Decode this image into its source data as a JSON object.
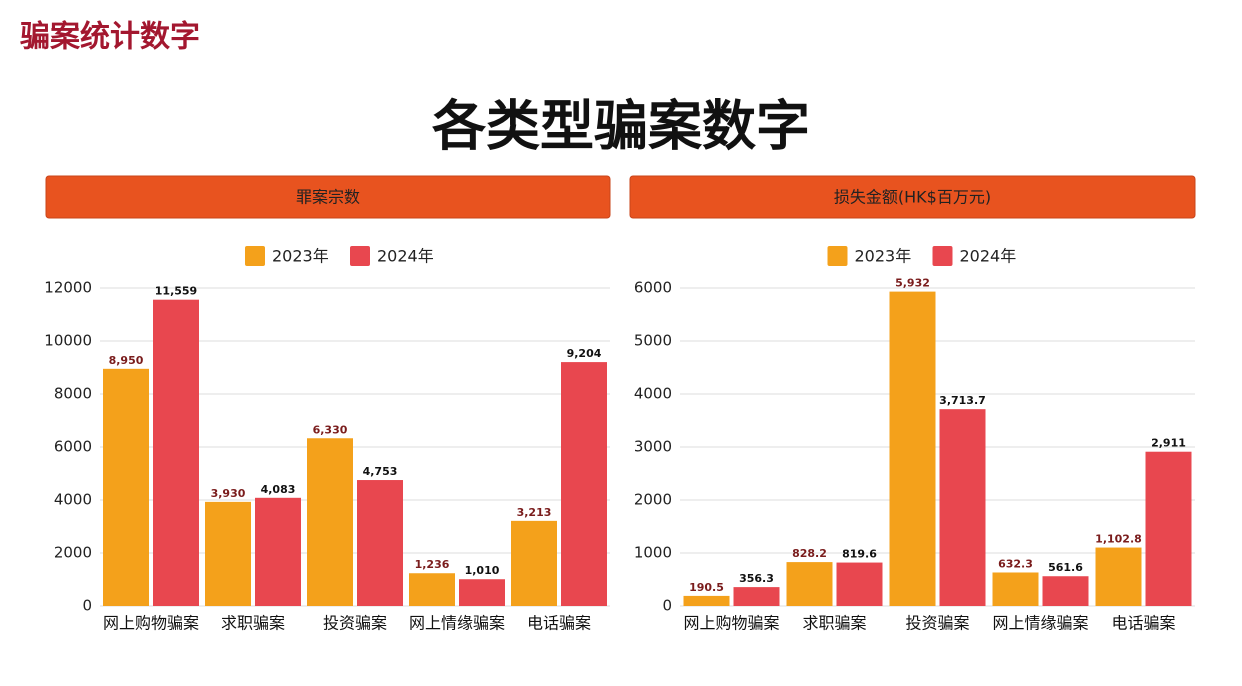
{
  "header": {
    "label": "骗案统计数字",
    "title": "各类型骗案数字"
  },
  "chart_data": [
    {
      "type": "bar",
      "title": "罪案宗数",
      "categories": [
        "网上购物骗案",
        "求职骗案",
        "投资骗案",
        "网上情缘骗案",
        "电话骗案"
      ],
      "series": [
        {
          "name": "2023年",
          "color": "#f4a11b",
          "values": [
            8950,
            3930,
            6330,
            1236,
            3213
          ],
          "value_labels": [
            "8,950",
            "3,930",
            "6,330",
            "1,236",
            "3,213"
          ]
        },
        {
          "name": "2024年",
          "color": "#e8474f",
          "values": [
            11559,
            4083,
            4753,
            1010,
            9204
          ],
          "value_labels": [
            "11,559",
            "4,083",
            "4,753",
            "1,010",
            "9,204"
          ]
        }
      ],
      "ylim": [
        0,
        12000
      ],
      "yticks": [
        0,
        2000,
        4000,
        6000,
        8000,
        10000,
        12000
      ],
      "grid": true,
      "legend": "top"
    },
    {
      "type": "bar",
      "title": "损失金额(HK$百万元)",
      "categories": [
        "网上购物骗案",
        "求职骗案",
        "投资骗案",
        "网上情缘骗案",
        "电话骗案"
      ],
      "series": [
        {
          "name": "2023年",
          "color": "#f4a11b",
          "values": [
            190.5,
            828.2,
            5932,
            632.3,
            1102.8
          ],
          "value_labels": [
            "190.5",
            "828.2",
            "5,932",
            "632.3",
            "1,102.8"
          ]
        },
        {
          "name": "2024年",
          "color": "#e8474f",
          "values": [
            356.3,
            819.6,
            3713.7,
            561.6,
            2911
          ],
          "value_labels": [
            "356.3",
            "819.6",
            "3,713.7",
            "561.6",
            "2,911"
          ]
        }
      ],
      "ylim": [
        0,
        6000
      ],
      "yticks": [
        0,
        1000,
        2000,
        3000,
        4000,
        5000,
        6000
      ],
      "grid": true,
      "legend": "top"
    }
  ]
}
